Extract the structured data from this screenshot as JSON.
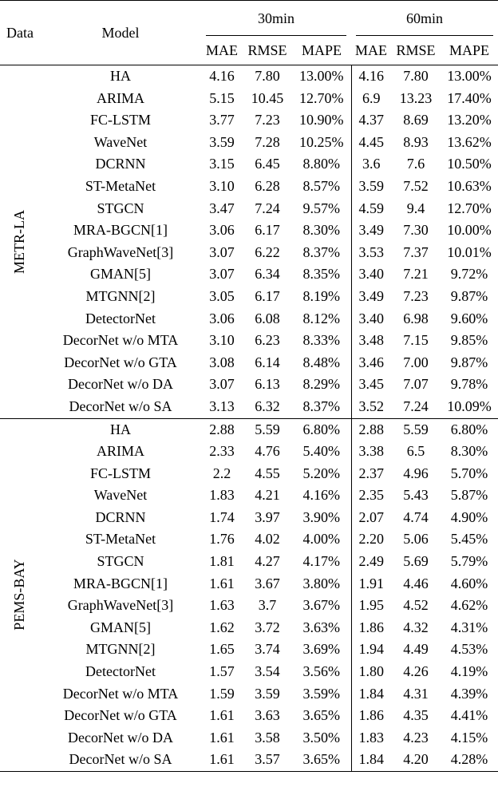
{
  "header": {
    "data": "Data",
    "model": "Model",
    "group_30": "30min",
    "group_60": "60min",
    "metrics": [
      "MAE",
      "RMSE",
      "MAPE",
      "MAE",
      "RMSE",
      "MAPE"
    ]
  },
  "sections": [
    {
      "name": "METR-LA",
      "rows": [
        {
          "model": "HA",
          "v": [
            "4.16",
            "7.80",
            "13.00%",
            "4.16",
            "7.80",
            "13.00%"
          ],
          "bold": []
        },
        {
          "model": "ARIMA",
          "v": [
            "5.15",
            "10.45",
            "12.70%",
            "6.9",
            "13.23",
            "17.40%"
          ],
          "bold": []
        },
        {
          "model": "FC-LSTM",
          "v": [
            "3.77",
            "7.23",
            "10.90%",
            "4.37",
            "8.69",
            "13.20%"
          ],
          "bold": []
        },
        {
          "model": "WaveNet",
          "v": [
            "3.59",
            "7.28",
            "10.25%",
            "4.45",
            "8.93",
            "13.62%"
          ],
          "bold": []
        },
        {
          "model": "DCRNN",
          "v": [
            "3.15",
            "6.45",
            "8.80%",
            "3.6",
            "7.6",
            "10.50%"
          ],
          "bold": []
        },
        {
          "model": "ST-MetaNet",
          "v": [
            "3.10",
            "6.28",
            "8.57%",
            "3.59",
            "7.52",
            "10.63%"
          ],
          "bold": []
        },
        {
          "model": "STGCN",
          "v": [
            "3.47",
            "7.24",
            "9.57%",
            "4.59",
            "9.4",
            "12.70%"
          ],
          "bold": []
        },
        {
          "model": "MRA-BGCN[1]",
          "v": [
            "3.06",
            "6.17",
            "8.30%",
            "3.49",
            "7.30",
            "10.00%"
          ],
          "bold": []
        },
        {
          "model": "GraphWaveNet[3]",
          "v": [
            "3.07",
            "6.22",
            "8.37%",
            "3.53",
            "7.37",
            "10.01%"
          ],
          "bold": []
        },
        {
          "model": "GMAN[5]",
          "v": [
            "3.07",
            "6.34",
            "8.35%",
            "3.40",
            "7.21",
            "9.72%"
          ],
          "bold": [
            3
          ]
        },
        {
          "model": "MTGNN[2]",
          "v": [
            "3.05",
            "6.17",
            "8.19%",
            "3.49",
            "7.23",
            "9.87%"
          ],
          "bold": [
            0
          ]
        },
        {
          "model": "DetectorNet",
          "v": [
            "3.06",
            "6.08",
            "8.12%",
            "3.40",
            "6.98",
            "9.60%"
          ],
          "bold": [
            1,
            2,
            3,
            4,
            5
          ]
        },
        {
          "model": "DecorNet w/o MTA",
          "v": [
            "3.10",
            "6.23",
            "8.33%",
            "3.48",
            "7.15",
            "9.85%"
          ],
          "bold": []
        },
        {
          "model": "DecorNet w/o GTA",
          "v": [
            "3.08",
            "6.14",
            "8.48%",
            "3.46",
            "7.00",
            "9.87%"
          ],
          "bold": []
        },
        {
          "model": "DecorNet w/o DA",
          "v": [
            "3.07",
            "6.13",
            "8.29%",
            "3.45",
            "7.07",
            "9.78%"
          ],
          "bold": []
        },
        {
          "model": "DecorNet w/o SA",
          "v": [
            "3.13",
            "6.32",
            "8.37%",
            "3.52",
            "7.24",
            "10.09%"
          ],
          "bold": []
        }
      ]
    },
    {
      "name": "PEMS-BAY",
      "rows": [
        {
          "model": "HA",
          "v": [
            "2.88",
            "5.59",
            "6.80%",
            "2.88",
            "5.59",
            "6.80%"
          ],
          "bold": []
        },
        {
          "model": "ARIMA",
          "v": [
            "2.33",
            "4.76",
            "5.40%",
            "3.38",
            "6.5",
            "8.30%"
          ],
          "bold": []
        },
        {
          "model": "FC-LSTM",
          "v": [
            "2.2",
            "4.55",
            "5.20%",
            "2.37",
            "4.96",
            "5.70%"
          ],
          "bold": []
        },
        {
          "model": "WaveNet",
          "v": [
            "1.83",
            "4.21",
            "4.16%",
            "2.35",
            "5.43",
            "5.87%"
          ],
          "bold": []
        },
        {
          "model": "DCRNN",
          "v": [
            "1.74",
            "3.97",
            "3.90%",
            "2.07",
            "4.74",
            "4.90%"
          ],
          "bold": []
        },
        {
          "model": "ST-MetaNet",
          "v": [
            "1.76",
            "4.02",
            "4.00%",
            "2.20",
            "5.06",
            "5.45%"
          ],
          "bold": []
        },
        {
          "model": "STGCN",
          "v": [
            "1.81",
            "4.27",
            "4.17%",
            "2.49",
            "5.69",
            "5.79%"
          ],
          "bold": []
        },
        {
          "model": "MRA-BGCN[1]",
          "v": [
            "1.61",
            "3.67",
            "3.80%",
            "1.91",
            "4.46",
            "4.60%"
          ],
          "bold": []
        },
        {
          "model": "GraphWaveNet[3]",
          "v": [
            "1.63",
            "3.7",
            "3.67%",
            "1.95",
            "4.52",
            "4.62%"
          ],
          "bold": []
        },
        {
          "model": "GMAN[5]",
          "v": [
            "1.62",
            "3.72",
            "3.63%",
            "1.86",
            "4.32",
            "4.31%"
          ],
          "bold": []
        },
        {
          "model": "MTGNN[2]",
          "v": [
            "1.65",
            "3.74",
            "3.69%",
            "1.94",
            "4.49",
            "4.53%"
          ],
          "bold": []
        },
        {
          "model": "DetectorNet",
          "v": [
            "1.57",
            "3.54",
            "3.56%",
            "1.80",
            "4.26",
            "4.19%"
          ],
          "bold": [
            0,
            1,
            3,
            5
          ]
        },
        {
          "model": "DecorNet w/o MTA",
          "v": [
            "1.59",
            "3.59",
            "3.59%",
            "1.84",
            "4.31",
            "4.39%"
          ],
          "bold": []
        },
        {
          "model": "DecorNet w/o GTA",
          "v": [
            "1.61",
            "3.63",
            "3.65%",
            "1.86",
            "4.35",
            "4.41%"
          ],
          "bold": []
        },
        {
          "model": "DecorNet w/o DA",
          "v": [
            "1.61",
            "3.58",
            "3.50%",
            "1.83",
            "4.23",
            "4.15%"
          ],
          "bold": [
            2
          ]
        },
        {
          "model": "DecorNet w/o SA",
          "v": [
            "1.61",
            "3.57",
            "3.65%",
            "1.84",
            "4.20",
            "4.28%"
          ],
          "bold": [
            4
          ]
        }
      ]
    }
  ]
}
